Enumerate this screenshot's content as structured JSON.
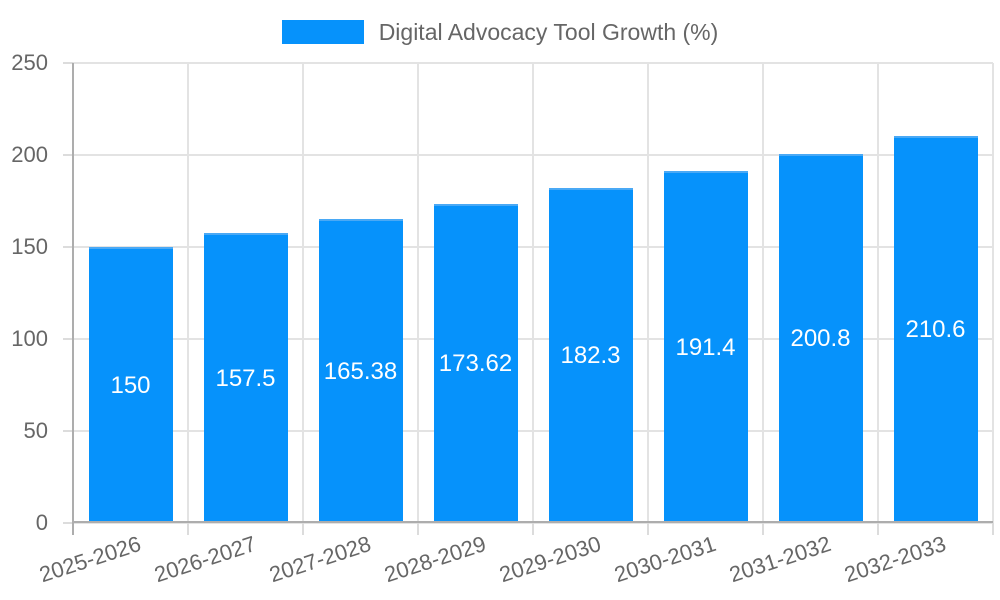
{
  "chart_data": {
    "type": "bar",
    "title": "Digital Advocacy Tool Growth (%)",
    "categories": [
      "2025-2026",
      "2026-2027",
      "2027-2028",
      "2028-2029",
      "2029-2030",
      "2030-2031",
      "2031-2032",
      "2032-2033"
    ],
    "values": [
      150,
      157.5,
      165.38,
      173.62,
      182.3,
      191.4,
      200.8,
      210.6
    ],
    "value_labels": [
      "150",
      "157.5",
      "165.38",
      "173.62",
      "182.3",
      "191.4",
      "200.8",
      "210.6"
    ],
    "xlabel": "",
    "ylabel": "",
    "ylim": [
      0,
      250
    ],
    "yticks": [
      0,
      50,
      100,
      150,
      200,
      250
    ],
    "grid": true,
    "legend_position": "top",
    "colors": {
      "bar_fill": "#0692fb",
      "bar_border": "#4aa9f5",
      "value_label": "#ffffff",
      "axis_text": "#666666",
      "grid_line": "#e3e3e3",
      "tick_mark": "#dcdcdc",
      "axis_line": "#adadad",
      "background": "#ffffff"
    }
  }
}
